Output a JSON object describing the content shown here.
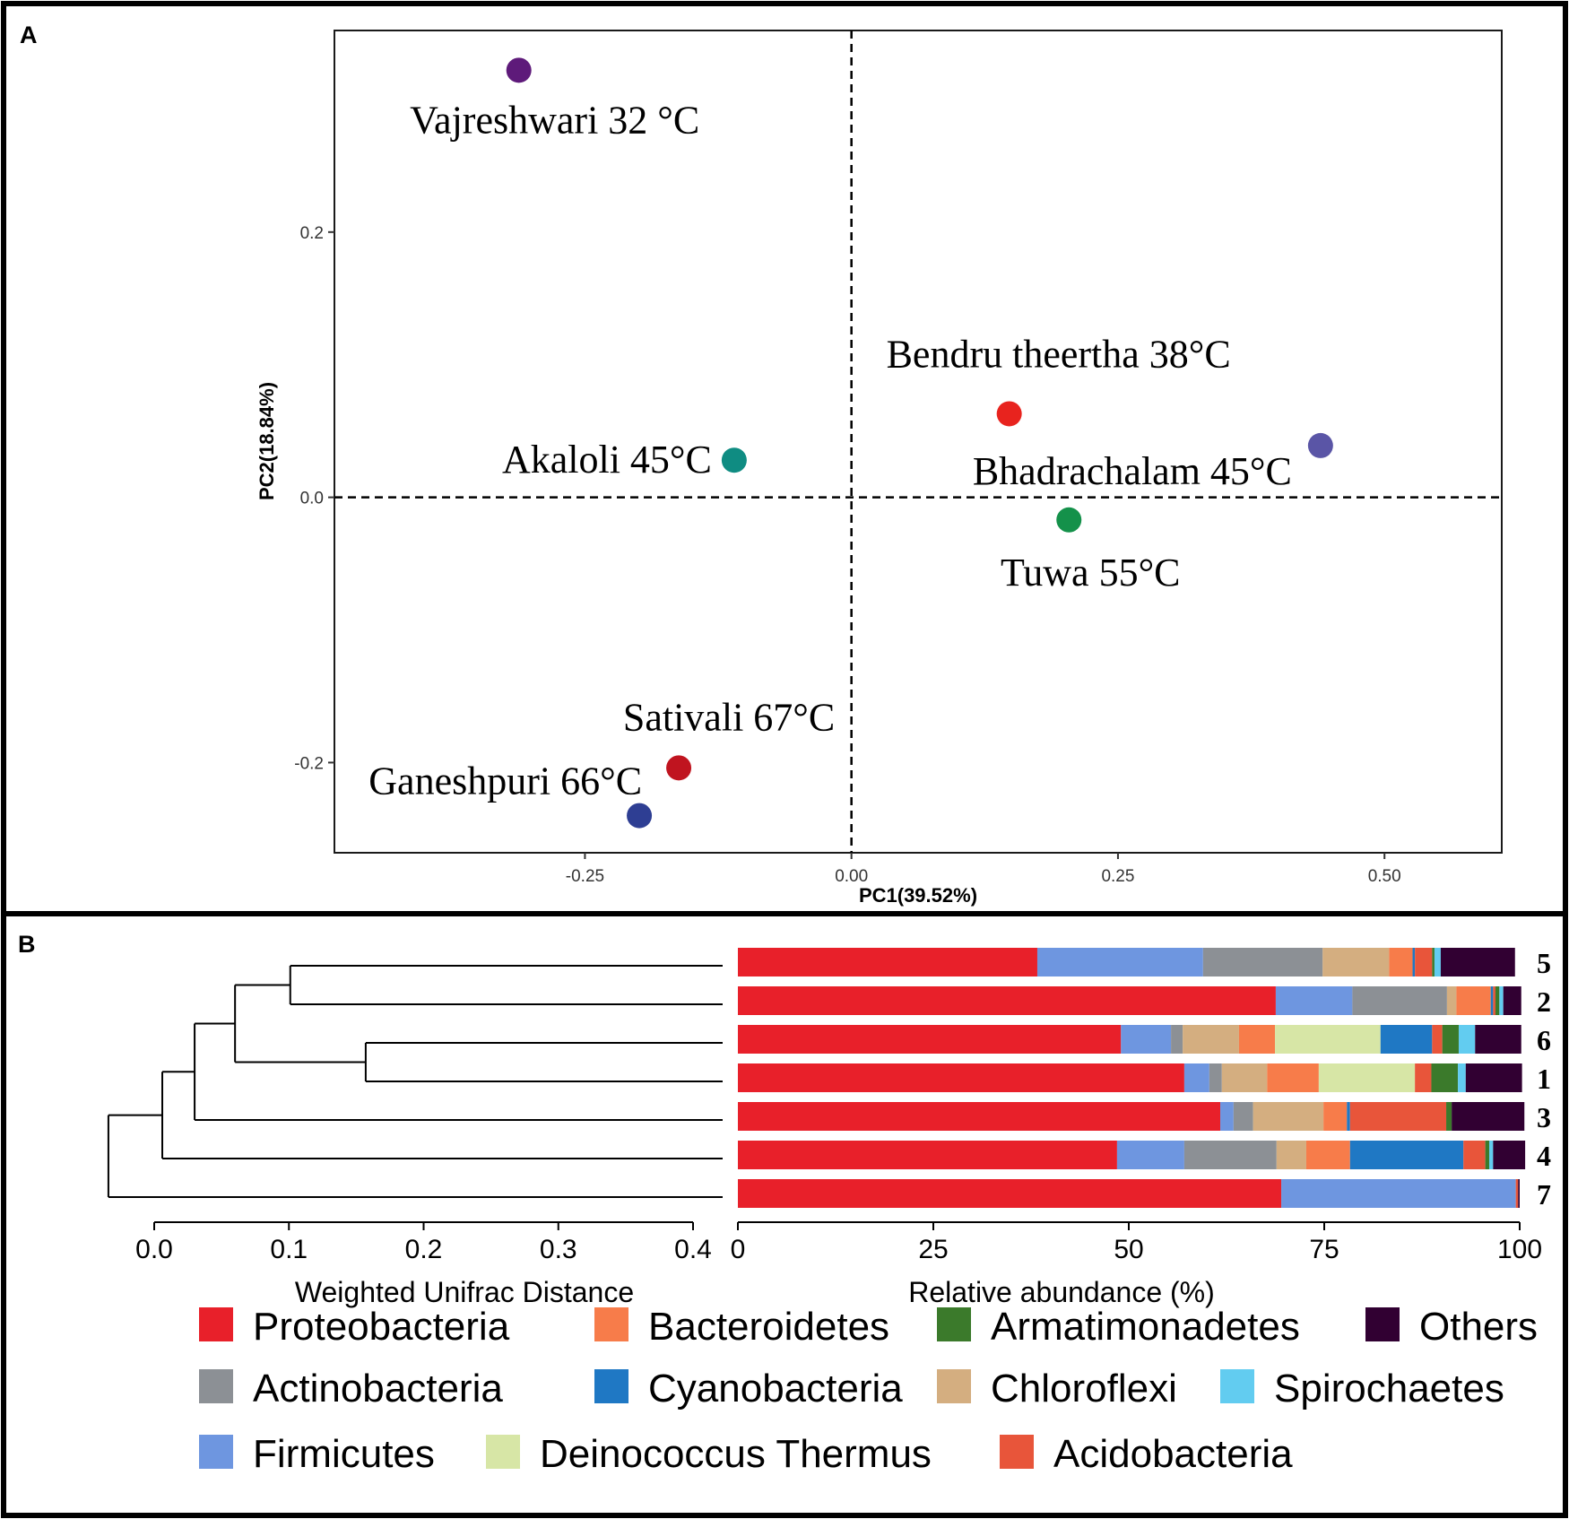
{
  "chart_data": [
    {
      "type": "scatter",
      "panel_label": "A",
      "xlabel": "PC1(39.52%)",
      "ylabel": "PC2(18.84%)",
      "xlim": [
        -0.485,
        0.61
      ],
      "ylim": [
        -0.268,
        0.352
      ],
      "xticks": [
        {
          "value": -0.25,
          "label": "-0.25"
        },
        {
          "value": 0.0,
          "label": "0.00"
        },
        {
          "value": 0.25,
          "label": "0.25"
        },
        {
          "value": 0.5,
          "label": "0.50"
        }
      ],
      "yticks": [
        {
          "value": 0.2,
          "label": "0.2"
        },
        {
          "value": 0.0,
          "label": "0.0"
        },
        {
          "value": -0.2,
          "label": "-0.2"
        }
      ],
      "reference_lines": {
        "x": 0,
        "y": 0
      },
      "grid": false,
      "points": [
        {
          "label": "Vajreshwari 32 °C",
          "x": -0.312,
          "y": 0.322,
          "color": "#5e1a7a",
          "label_pos": "below"
        },
        {
          "label": "Akaloli 45°C",
          "x": -0.11,
          "y": 0.028,
          "color": "#0f8c82",
          "label_pos": "left"
        },
        {
          "label": "Bendru theertha 38°C",
          "x": 0.148,
          "y": 0.063,
          "color": "#e8231e",
          "label_pos": "above"
        },
        {
          "label": "Bhadrachalam 45°C",
          "x": 0.44,
          "y": 0.039,
          "color": "#5a55a6",
          "label_pos": "below-left"
        },
        {
          "label": "Tuwa 55°C",
          "x": 0.204,
          "y": -0.017,
          "color": "#14914a",
          "label_pos": "below"
        },
        {
          "label": "Sativali 67°C",
          "x": -0.162,
          "y": -0.204,
          "color": "#c0141f",
          "label_pos": "above"
        },
        {
          "label": "Ganeshpuri 66°C",
          "x": -0.199,
          "y": -0.24,
          "color": "#2e3e93",
          "label_pos": "left"
        }
      ]
    },
    {
      "type": "dendrogram",
      "panel_label": "B",
      "xlabel": "Weighted Unifrac Distance",
      "xlim": [
        0.0,
        0.4
      ],
      "xticks": [
        {
          "value": 0.0,
          "label": "0.0"
        },
        {
          "value": 0.1,
          "label": "0.1"
        },
        {
          "value": 0.2,
          "label": "0.2"
        },
        {
          "value": 0.3,
          "label": "0.3"
        },
        {
          "value": 0.4,
          "label": "0.4"
        }
      ],
      "leaves": [
        "5",
        "2",
        "6",
        "1",
        "3",
        "4",
        "7"
      ],
      "merges": [
        {
          "left": 0,
          "right": 1,
          "height": 0.101
        },
        {
          "left": 2,
          "right": 3,
          "height": 0.157
        },
        {
          "left": [
            0,
            1
          ],
          "right": [
            2,
            3
          ],
          "height": 0.06
        },
        {
          "left": [
            0,
            1,
            2,
            3
          ],
          "right": 4,
          "height": 0.03
        },
        {
          "left": [
            0,
            1,
            2,
            3,
            4
          ],
          "right": 5,
          "height": 0.006
        },
        {
          "left": [
            0,
            1,
            2,
            3,
            4,
            5
          ],
          "right": 6,
          "height": -0.034
        }
      ]
    },
    {
      "type": "bar",
      "orientation": "horizontal",
      "stacked": true,
      "xlabel": "Relative abundance (%)",
      "xlim": [
        0,
        100
      ],
      "xticks": [
        {
          "value": 0,
          "label": "0"
        },
        {
          "value": 25,
          "label": "25"
        },
        {
          "value": 50,
          "label": "50"
        },
        {
          "value": 75,
          "label": "75"
        },
        {
          "value": 100,
          "label": "100"
        }
      ],
      "categories": [
        "5",
        "2",
        "6",
        "1",
        "3",
        "4",
        "7"
      ],
      "series": [
        {
          "name": "Proteobacteria",
          "color": "#e8202a",
          "values": [
            38.3,
            68.8,
            49.0,
            57.1,
            61.7,
            48.5,
            69.5
          ]
        },
        {
          "name": "Firmicutes",
          "color": "#6e96e0",
          "values": [
            21.2,
            9.8,
            6.4,
            3.2,
            1.7,
            8.6,
            30.0
          ]
        },
        {
          "name": "Actinobacteria",
          "color": "#8c9095",
          "values": [
            15.3,
            12.1,
            1.5,
            1.6,
            2.5,
            11.8,
            0
          ]
        },
        {
          "name": "Chloroflexi",
          "color": "#d4ae80",
          "values": [
            8.5,
            1.2,
            7.2,
            5.8,
            9.0,
            3.8,
            0
          ]
        },
        {
          "name": "Bacteroidetes",
          "color": "#f77c4a",
          "values": [
            3.0,
            4.4,
            4.6,
            6.6,
            3.0,
            5.6,
            0
          ]
        },
        {
          "name": "Deinococcus Thermus",
          "color": "#d7e6a6",
          "values": [
            0,
            0,
            13.5,
            12.3,
            0,
            0,
            0
          ]
        },
        {
          "name": "Cyanobacteria",
          "color": "#1f78c4",
          "values": [
            0.3,
            0.3,
            6.6,
            0,
            0.4,
            14.5,
            0
          ]
        },
        {
          "name": "Acidobacteria",
          "color": "#e8553a",
          "values": [
            2.2,
            0.3,
            1.3,
            2.1,
            12.3,
            2.8,
            0.3
          ]
        },
        {
          "name": "Armatimonadetes",
          "color": "#3b7a2b",
          "values": [
            0.3,
            0.5,
            2.1,
            3.4,
            0.7,
            0.5,
            0
          ]
        },
        {
          "name": "Spirochaetes",
          "color": "#62ccf0",
          "values": [
            0.8,
            0.5,
            2.1,
            1.0,
            0,
            0.5,
            0
          ]
        },
        {
          "name": "Others",
          "color": "#310032",
          "values": [
            9.5,
            2.3,
            5.9,
            7.2,
            9.3,
            4.1,
            0.2
          ]
        }
      ],
      "legend": {
        "placement": "bottom",
        "rows": [
          [
            "Proteobacteria",
            "Bacteroidetes",
            "Armatimonadetes",
            "Others"
          ],
          [
            "Actinobacteria",
            "Cyanobacteria",
            "Chloroflexi",
            "Spirochaetes"
          ],
          [
            "Firmicutes",
            "Deinococcus Thermus",
            "Acidobacteria"
          ]
        ]
      }
    }
  ]
}
